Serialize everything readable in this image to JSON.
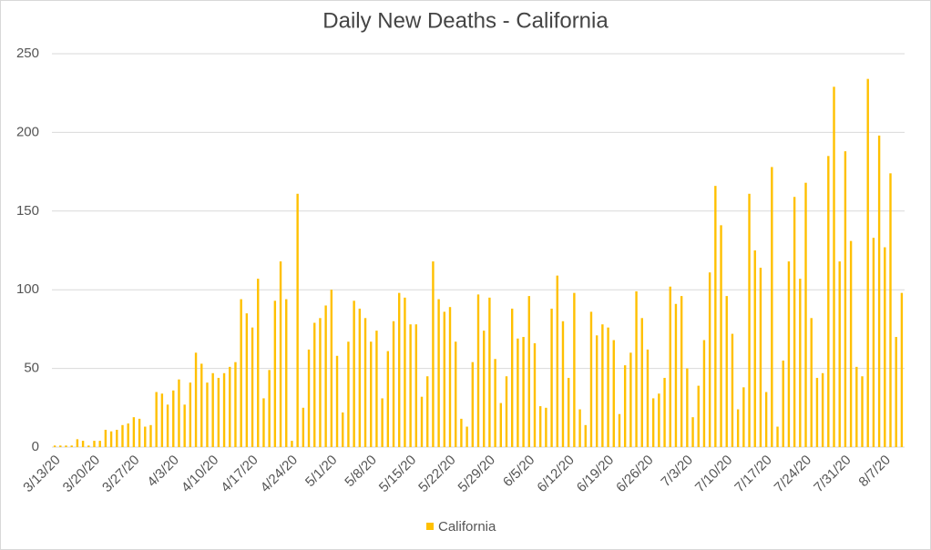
{
  "chart_data": {
    "type": "bar",
    "title": "Daily New Deaths - California",
    "categories": [
      "3/13/20",
      null,
      null,
      null,
      null,
      null,
      null,
      "3/20/20",
      null,
      null,
      null,
      null,
      null,
      null,
      "3/27/20",
      null,
      null,
      null,
      null,
      null,
      null,
      "4/3/20",
      null,
      null,
      null,
      null,
      null,
      null,
      "4/10/20",
      null,
      null,
      null,
      null,
      null,
      null,
      "4/17/20",
      null,
      null,
      null,
      null,
      null,
      null,
      "4/24/20",
      null,
      null,
      null,
      null,
      null,
      null,
      "5/1/20",
      null,
      null,
      null,
      null,
      null,
      null,
      "5/8/20",
      null,
      null,
      null,
      null,
      null,
      null,
      "5/15/20",
      null,
      null,
      null,
      null,
      null,
      null,
      "5/22/20",
      null,
      null,
      null,
      null,
      null,
      null,
      "5/29/20",
      null,
      null,
      null,
      null,
      null,
      null,
      "6/5/20",
      null,
      null,
      null,
      null,
      null,
      null,
      "6/12/20",
      null,
      null,
      null,
      null,
      null,
      null,
      "6/19/20",
      null,
      null,
      null,
      null,
      null,
      null,
      "6/26/20",
      null,
      null,
      null,
      null,
      null,
      null,
      "7/3/20",
      null,
      null,
      null,
      null,
      null,
      null,
      "7/10/20",
      null,
      null,
      null,
      null,
      null,
      null,
      "7/17/20",
      null,
      null,
      null,
      null,
      null,
      null,
      "7/24/20",
      null,
      null,
      null,
      null,
      null,
      null,
      "7/31/20",
      null,
      null,
      null,
      null,
      null,
      null,
      "8/7/20",
      null,
      null,
      null
    ],
    "series": [
      {
        "name": "California",
        "color": "#ffc000",
        "values": [
          1,
          1,
          1,
          1,
          5,
          4,
          1,
          4,
          4,
          11,
          10,
          11,
          14,
          15,
          19,
          18,
          13,
          14,
          35,
          34,
          27,
          36,
          43,
          27,
          41,
          60,
          53,
          41,
          47,
          44,
          47,
          51,
          54,
          94,
          85,
          76,
          107,
          31,
          49,
          93,
          118,
          94,
          4,
          161,
          25,
          62,
          79,
          82,
          90,
          100,
          58,
          22,
          67,
          93,
          88,
          82,
          67,
          74,
          31,
          61,
          80,
          98,
          95,
          78,
          78,
          32,
          45,
          118,
          94,
          86,
          89,
          67,
          18,
          13,
          54,
          97,
          74,
          95,
          56,
          28,
          45,
          88,
          69,
          70,
          96,
          66,
          26,
          25,
          88,
          109,
          80,
          44,
          98,
          24,
          14,
          86,
          71,
          78,
          76,
          68,
          21,
          52,
          60,
          99,
          82,
          62,
          31,
          34,
          44,
          102,
          91,
          96,
          50,
          19,
          39,
          68,
          111,
          166,
          141,
          96,
          72,
          24,
          38,
          161,
          125,
          114,
          35,
          178,
          13,
          55,
          118,
          159,
          107,
          168,
          82,
          44,
          47,
          185,
          229,
          118,
          188,
          131,
          51,
          45,
          234,
          133,
          198,
          127,
          174,
          70,
          98
        ]
      }
    ],
    "ylim": [
      0,
      250
    ],
    "yticks": [
      0,
      50,
      100,
      150,
      200,
      250
    ],
    "grid": true,
    "legend": "bottom"
  }
}
